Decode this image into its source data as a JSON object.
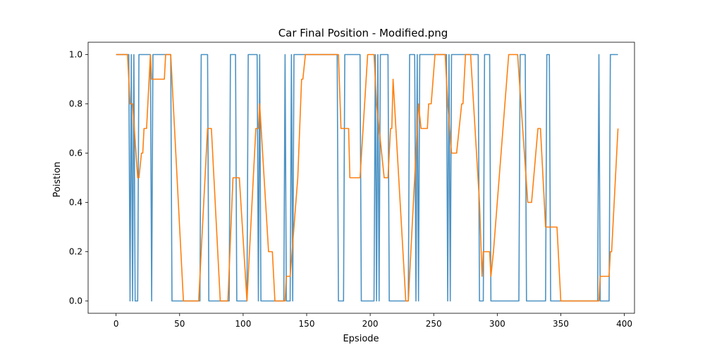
{
  "chart_data": {
    "type": "line",
    "title": "Car Final Position - Modified.png",
    "xlabel": "Epsiode",
    "ylabel": "Poistion",
    "xlim": [
      -22,
      408
    ],
    "ylim": [
      -0.05,
      1.05
    ],
    "xticks": [
      0,
      50,
      100,
      150,
      200,
      250,
      300,
      350,
      400
    ],
    "yticks": [
      0.0,
      0.2,
      0.4,
      0.6,
      0.8,
      1.0
    ],
    "xtick_labels": [
      "0",
      "50",
      "100",
      "150",
      "200",
      "250",
      "300",
      "350",
      "400"
    ],
    "ytick_labels": [
      "0.0",
      "0.2",
      "0.4",
      "0.6",
      "0.8",
      "1.0"
    ],
    "grid": false,
    "legend": false,
    "series": [
      {
        "color": "#1f77b4",
        "opacity": 0.8,
        "step": true,
        "points": [
          [
            0,
            1
          ],
          [
            10,
            1
          ],
          [
            11,
            0
          ],
          [
            12,
            1
          ],
          [
            13,
            0
          ],
          [
            14,
            1
          ],
          [
            15,
            0
          ],
          [
            17,
            0
          ],
          [
            18,
            1
          ],
          [
            27,
            1
          ],
          [
            28,
            0
          ],
          [
            29,
            1
          ],
          [
            43,
            1
          ],
          [
            44,
            0
          ],
          [
            66,
            0
          ],
          [
            67,
            1
          ],
          [
            72,
            1
          ],
          [
            73,
            0
          ],
          [
            89,
            0
          ],
          [
            90,
            1
          ],
          [
            94,
            1
          ],
          [
            95,
            0
          ],
          [
            103,
            0
          ],
          [
            104,
            1
          ],
          [
            111,
            1
          ],
          [
            112,
            0
          ],
          [
            113,
            1
          ],
          [
            114,
            0
          ],
          [
            132,
            0
          ],
          [
            133,
            1
          ],
          [
            134,
            0
          ],
          [
            137,
            0
          ],
          [
            138,
            1
          ],
          [
            139,
            0
          ],
          [
            140,
            1
          ],
          [
            174,
            1
          ],
          [
            175,
            0
          ],
          [
            179,
            0
          ],
          [
            180,
            1
          ],
          [
            192,
            1
          ],
          [
            193,
            0
          ],
          [
            203,
            0
          ],
          [
            204,
            1
          ],
          [
            205,
            0
          ],
          [
            206,
            1
          ],
          [
            207,
            0
          ],
          [
            208,
            1
          ],
          [
            214,
            1
          ],
          [
            215,
            0
          ],
          [
            230,
            0
          ],
          [
            231,
            1
          ],
          [
            235,
            1
          ],
          [
            236,
            0
          ],
          [
            237,
            1
          ],
          [
            238,
            0
          ],
          [
            239,
            1
          ],
          [
            260,
            1
          ],
          [
            261,
            0
          ],
          [
            262,
            1
          ],
          [
            263,
            0
          ],
          [
            264,
            1
          ],
          [
            285,
            1
          ],
          [
            286,
            0
          ],
          [
            289,
            0
          ],
          [
            290,
            1
          ],
          [
            294,
            1
          ],
          [
            295,
            0
          ],
          [
            317,
            0
          ],
          [
            318,
            1
          ],
          [
            322,
            1
          ],
          [
            323,
            0
          ],
          [
            338,
            0
          ],
          [
            339,
            1
          ],
          [
            341,
            1
          ],
          [
            342,
            0
          ],
          [
            379,
            0
          ],
          [
            380,
            1
          ],
          [
            381,
            0
          ],
          [
            388,
            0
          ],
          [
            389,
            1
          ],
          [
            395,
            1
          ]
        ]
      },
      {
        "color": "#ff7f0e",
        "opacity": 1,
        "step": false,
        "points": [
          [
            0,
            1
          ],
          [
            9,
            1
          ],
          [
            10,
            0.9
          ],
          [
            11,
            0.8
          ],
          [
            13,
            0.8
          ],
          [
            17,
            0.5
          ],
          [
            18,
            0.5
          ],
          [
            20,
            0.6
          ],
          [
            21,
            0.6
          ],
          [
            22,
            0.7
          ],
          [
            24,
            0.7
          ],
          [
            27,
            1
          ],
          [
            28,
            0.9
          ],
          [
            38,
            0.9
          ],
          [
            39,
            1
          ],
          [
            43,
            1
          ],
          [
            53,
            0
          ],
          [
            65,
            0
          ],
          [
            72,
            0.7
          ],
          [
            75,
            0.7
          ],
          [
            82,
            0
          ],
          [
            88,
            0
          ],
          [
            92,
            0.5
          ],
          [
            97,
            0.5
          ],
          [
            103,
            0
          ],
          [
            110,
            0.7
          ],
          [
            112,
            0.7
          ],
          [
            113,
            0.8
          ],
          [
            120,
            0.2
          ],
          [
            123,
            0.2
          ],
          [
            125,
            0
          ],
          [
            133,
            0
          ],
          [
            134,
            0.1
          ],
          [
            137,
            0.1
          ],
          [
            143,
            0.5
          ],
          [
            146,
            0.9
          ],
          [
            147,
            0.9
          ],
          [
            149,
            1
          ],
          [
            175,
            1
          ],
          [
            177,
            0.7
          ],
          [
            183,
            0.7
          ],
          [
            184,
            0.5
          ],
          [
            192,
            0.5
          ],
          [
            198,
            1
          ],
          [
            203,
            1
          ],
          [
            205,
            0.8
          ],
          [
            211,
            0.5
          ],
          [
            214,
            0.5
          ],
          [
            216,
            0.7
          ],
          [
            217,
            0.7
          ],
          [
            218,
            0.9
          ],
          [
            228,
            0
          ],
          [
            230,
            0
          ],
          [
            238,
            0.8
          ],
          [
            240,
            0.7
          ],
          [
            245,
            0.7
          ],
          [
            246,
            0.8
          ],
          [
            248,
            0.8
          ],
          [
            251,
            1
          ],
          [
            259,
            1
          ],
          [
            261,
            0.8
          ],
          [
            264,
            0.6
          ],
          [
            268,
            0.6
          ],
          [
            272,
            0.8
          ],
          [
            273,
            0.8
          ],
          [
            275,
            1
          ],
          [
            279,
            1
          ],
          [
            286,
            0.4
          ],
          [
            288,
            0.1
          ],
          [
            289,
            0.2
          ],
          [
            294,
            0.2
          ],
          [
            295,
            0.1
          ],
          [
            297,
            0.2
          ],
          [
            309,
            1
          ],
          [
            316,
            1
          ],
          [
            324,
            0.4
          ],
          [
            327,
            0.4
          ],
          [
            332,
            0.7
          ],
          [
            334,
            0.7
          ],
          [
            338,
            0.3
          ],
          [
            347,
            0.3
          ],
          [
            350,
            0
          ],
          [
            380,
            0
          ],
          [
            381,
            0.1
          ],
          [
            388,
            0.1
          ],
          [
            389,
            0.2
          ],
          [
            390,
            0.2
          ],
          [
            395,
            0.7
          ]
        ]
      }
    ]
  }
}
